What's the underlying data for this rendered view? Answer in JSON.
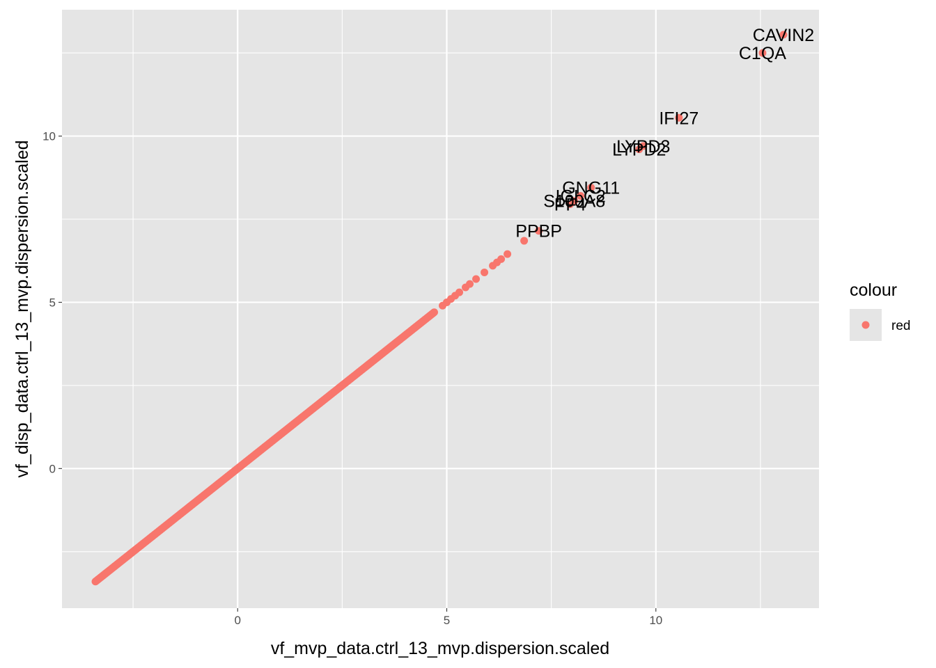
{
  "chart_data": {
    "type": "scatter",
    "xlabel": "vf_mvp_data.ctrl_13_mvp.dispersion.scaled",
    "ylabel": "vf_disp_data.ctrl_13_mvp.dispersion.scaled",
    "xlim": [
      -4.2,
      13.9
    ],
    "ylim": [
      -4.2,
      13.8
    ],
    "x_major_ticks": [
      0,
      5,
      10
    ],
    "x_minor_ticks": [
      -2.5,
      2.5,
      7.5,
      12.5
    ],
    "y_major_ticks": [
      0,
      5,
      10
    ],
    "y_minor_ticks": [
      -2.5,
      2.5,
      7.5,
      12.5
    ],
    "grid": true,
    "panel_background": "#e5e5e5",
    "grid_color": "#ffffff",
    "point_color": "#f8766d",
    "identity_line": {
      "from": -3.4,
      "to": 4.7,
      "step": 0.02
    },
    "sparse_points": [
      [
        4.9,
        4.9
      ],
      [
        5.0,
        5.0
      ],
      [
        5.1,
        5.1
      ],
      [
        5.2,
        5.2
      ],
      [
        5.3,
        5.3
      ],
      [
        5.45,
        5.45
      ],
      [
        5.55,
        5.55
      ],
      [
        5.7,
        5.7
      ],
      [
        5.9,
        5.9
      ],
      [
        6.1,
        6.1
      ],
      [
        6.2,
        6.2
      ],
      [
        6.3,
        6.3
      ],
      [
        6.45,
        6.45
      ],
      [
        6.85,
        6.85
      ]
    ],
    "labeled_points": [
      {
        "label": "PPBP",
        "x": 7.2,
        "y": 7.15
      },
      {
        "label": "PF4",
        "x": 7.95,
        "y": 7.95
      },
      {
        "label": "S100A8",
        "x": 8.05,
        "y": 8.05
      },
      {
        "label": "IGLC2",
        "x": 8.2,
        "y": 8.2
      },
      {
        "label": "GNG11",
        "x": 8.45,
        "y": 8.45
      },
      {
        "label": "LYPD2",
        "x": 9.6,
        "y": 9.6
      },
      {
        "label": "LYPD3",
        "x": 9.7,
        "y": 9.7
      },
      {
        "label": "IFI27",
        "x": 10.55,
        "y": 10.55
      },
      {
        "label": "C1QA",
        "x": 12.55,
        "y": 12.5
      },
      {
        "label": "CAVIN2",
        "x": 13.05,
        "y": 13.05
      }
    ],
    "legend": {
      "title": "colour",
      "entries": [
        "red"
      ],
      "position": "right"
    }
  }
}
